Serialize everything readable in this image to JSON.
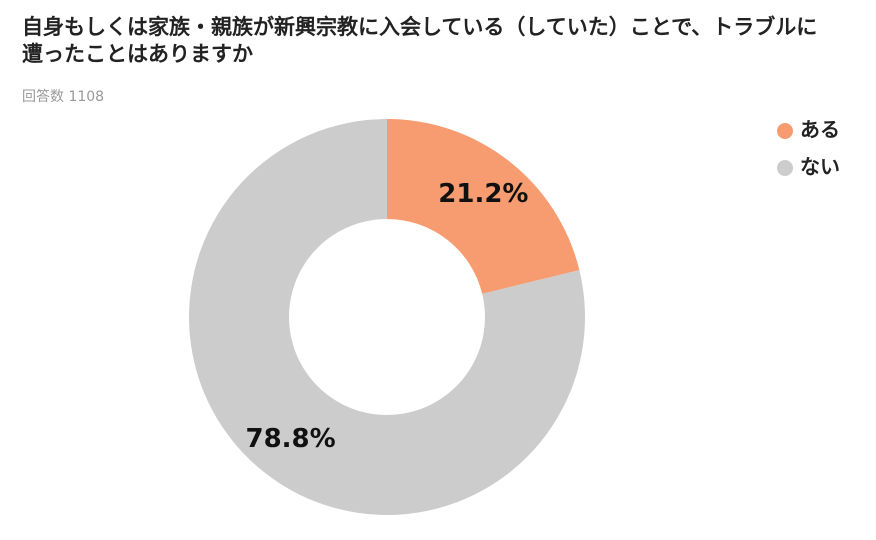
{
  "chart_data": {
    "type": "donut",
    "title": "自身もしくは家族・親族が新興宗教に入会している（していた）ことで、トラブルに遭ったことはありますか",
    "subtitle": "回答数 1108",
    "categories": [
      "ある",
      "ない"
    ],
    "values": [
      21.2,
      78.8
    ],
    "value_labels": [
      "21.2%",
      "78.8%"
    ],
    "colors": [
      "#f79b70",
      "#cccccc"
    ],
    "legend": "top-right"
  }
}
